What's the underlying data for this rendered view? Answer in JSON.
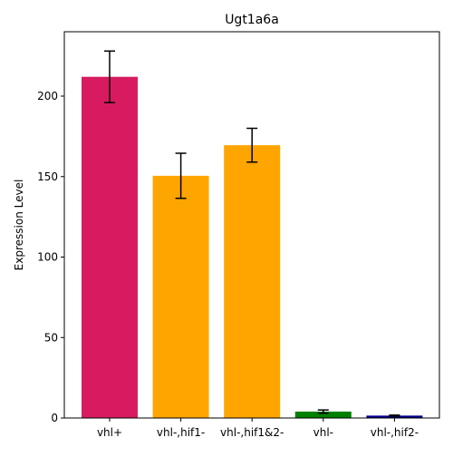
{
  "chart_data": {
    "type": "bar",
    "title": "Ugt1a6a",
    "xlabel": "",
    "ylabel": "Expression Level",
    "categories": [
      "vhl+",
      "vhl-,hif1-",
      "vhl-,hif1&2-",
      "vhl-",
      "vhl-,hif2-"
    ],
    "values": [
      212,
      150.5,
      169.5,
      4,
      1.5
    ],
    "errors": [
      16,
      14,
      10.5,
      1,
      0.3
    ],
    "colors": [
      "#d81b60",
      "#ffa500",
      "#ffa500",
      "#008000",
      "#00008b"
    ],
    "ylim": [
      0,
      240
    ],
    "yticks": [
      0,
      50,
      100,
      150,
      200
    ],
    "grid": false,
    "legend": "none"
  }
}
